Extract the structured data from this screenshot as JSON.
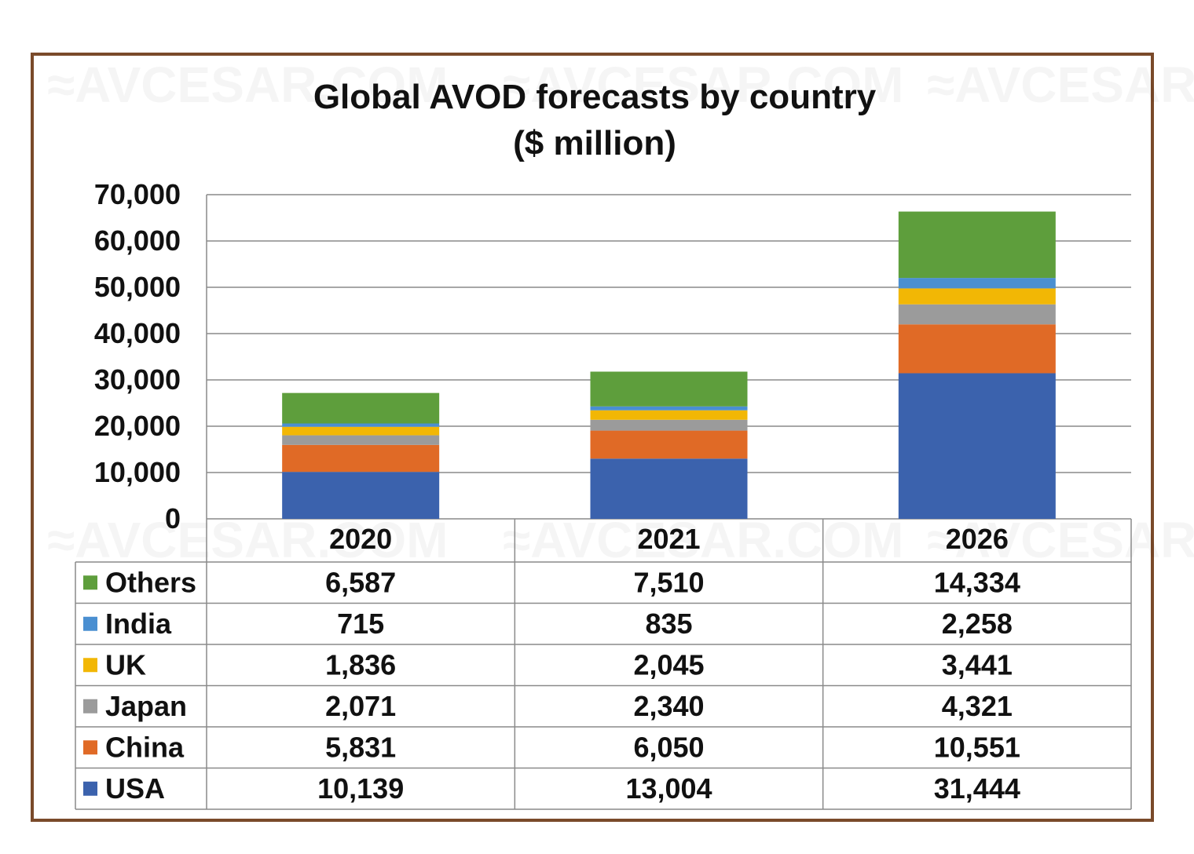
{
  "chart_data": {
    "type": "bar",
    "stacked": true,
    "title": "Global AVOD forecasts by country",
    "subtitle": "($ million)",
    "categories": [
      "2020",
      "2021",
      "2026"
    ],
    "ylim": [
      0,
      70000
    ],
    "yticks": [
      "0",
      "10,000",
      "20,000",
      "30,000",
      "40,000",
      "50,000",
      "60,000",
      "70,000"
    ],
    "ytick_values": [
      0,
      10000,
      20000,
      30000,
      40000,
      50000,
      60000,
      70000
    ],
    "grid": true,
    "legend": "data-table",
    "series": [
      {
        "name": "USA",
        "color": "#3b62ad",
        "values": [
          10139,
          13004,
          31444
        ],
        "labels": [
          "10,139",
          "13,004",
          "31,444"
        ]
      },
      {
        "name": "China",
        "color": "#e06a26",
        "values": [
          5831,
          6050,
          10551
        ],
        "labels": [
          "5,831",
          "6,050",
          "10,551"
        ]
      },
      {
        "name": "Japan",
        "color": "#9b9b9b",
        "values": [
          2071,
          2340,
          4321
        ],
        "labels": [
          "2,071",
          "2,340",
          "4,321"
        ]
      },
      {
        "name": "UK",
        "color": "#f2b705",
        "values": [
          1836,
          2045,
          3441
        ],
        "labels": [
          "1,836",
          "2,045",
          "3,441"
        ]
      },
      {
        "name": "India",
        "color": "#4a8fd1",
        "values": [
          715,
          835,
          2258
        ],
        "labels": [
          "715",
          "835",
          "2,258"
        ]
      },
      {
        "name": "Others",
        "color": "#5e9e3c",
        "values": [
          6587,
          7510,
          14334
        ],
        "labels": [
          "6,587",
          "7,510",
          "14,334"
        ]
      }
    ]
  }
}
